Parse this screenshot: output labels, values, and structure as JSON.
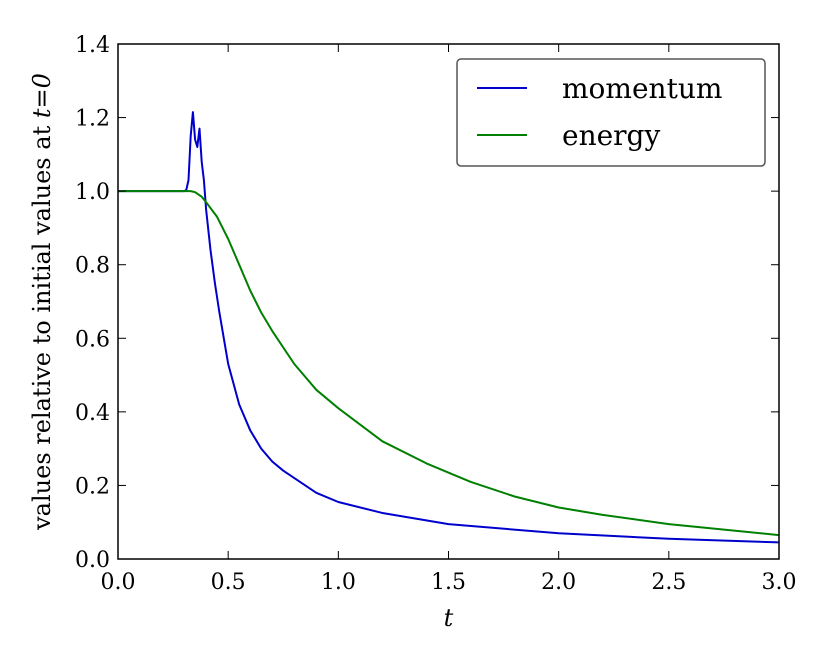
{
  "chart_data": {
    "type": "line",
    "xlabel": "t",
    "ylabel": "values relative to initial values at t=0",
    "ylabel_parts": {
      "text": "values relative to initial values at ",
      "math": "t=0"
    },
    "xlim": [
      0,
      3.0
    ],
    "ylim": [
      0,
      1.4
    ],
    "xticks": [
      "0.0",
      "0.5",
      "1.0",
      "1.5",
      "2.0",
      "2.5",
      "3.0"
    ],
    "yticks": [
      "0.0",
      "0.2",
      "0.4",
      "0.6",
      "0.8",
      "1.0",
      "1.2",
      "1.4"
    ],
    "grid": false,
    "legend_position": "top-right",
    "series": [
      {
        "name": "momentum",
        "color": "#0000cc",
        "x": [
          0,
          0.2,
          0.3,
          0.31,
          0.32,
          0.33,
          0.34,
          0.35,
          0.36,
          0.37,
          0.38,
          0.39,
          0.4,
          0.42,
          0.44,
          0.46,
          0.48,
          0.5,
          0.55,
          0.6,
          0.65,
          0.7,
          0.75,
          0.8,
          0.9,
          1.0,
          1.2,
          1.5,
          2.0,
          2.5,
          3.0
        ],
        "y": [
          1.0,
          1.0,
          1.0,
          1.003,
          1.03,
          1.15,
          1.215,
          1.14,
          1.12,
          1.17,
          1.08,
          1.03,
          0.95,
          0.84,
          0.75,
          0.67,
          0.6,
          0.53,
          0.42,
          0.35,
          0.3,
          0.265,
          0.24,
          0.22,
          0.18,
          0.155,
          0.125,
          0.095,
          0.07,
          0.055,
          0.045
        ]
      },
      {
        "name": "energy",
        "color": "#008000",
        "x": [
          0,
          0.25,
          0.3,
          0.33,
          0.35,
          0.38,
          0.4,
          0.45,
          0.5,
          0.55,
          0.6,
          0.65,
          0.7,
          0.8,
          0.9,
          1.0,
          1.2,
          1.4,
          1.6,
          1.8,
          2.0,
          2.2,
          2.5,
          3.0
        ],
        "y": [
          1.0,
          1.0,
          1.0,
          1.0,
          0.997,
          0.985,
          0.97,
          0.93,
          0.87,
          0.8,
          0.73,
          0.67,
          0.62,
          0.53,
          0.46,
          0.41,
          0.32,
          0.26,
          0.21,
          0.17,
          0.14,
          0.12,
          0.095,
          0.065
        ]
      }
    ]
  }
}
